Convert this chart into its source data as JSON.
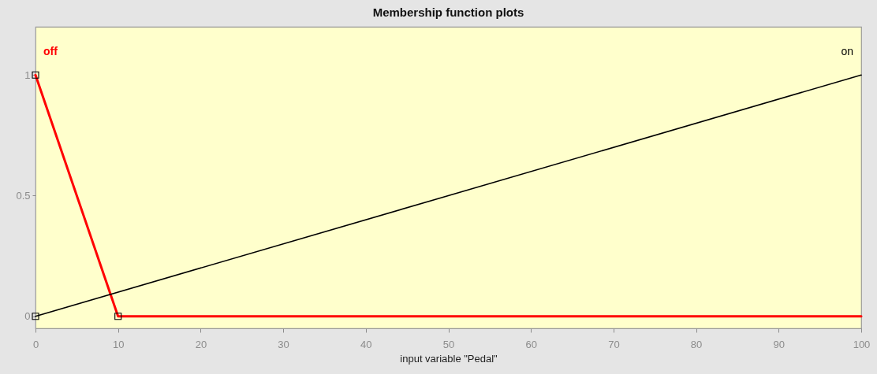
{
  "chart_data": {
    "type": "line",
    "title": "Membership function plots",
    "xlabel": "input variable \"Pedal\"",
    "series": [
      {
        "name": "off",
        "color": "#ff0000",
        "x": [
          0,
          10,
          100
        ],
        "values": [
          1,
          0,
          0
        ]
      },
      {
        "name": "on",
        "color": "#000000",
        "x": [
          0,
          100
        ],
        "values": [
          0,
          1
        ]
      },
      {
        "type": "scatter",
        "color": "#000000",
        "marker": "square",
        "x": [
          0,
          0,
          10
        ],
        "values": [
          1,
          0,
          0
        ]
      }
    ],
    "xlim": [
      0,
      100
    ],
    "ylim": [
      -0.05,
      1.2
    ],
    "xticks": [
      0,
      10,
      20,
      30,
      40,
      50,
      60,
      70,
      80,
      90,
      100
    ],
    "yticks": [
      0,
      0.5,
      1
    ],
    "grid": false,
    "legend": false
  }
}
